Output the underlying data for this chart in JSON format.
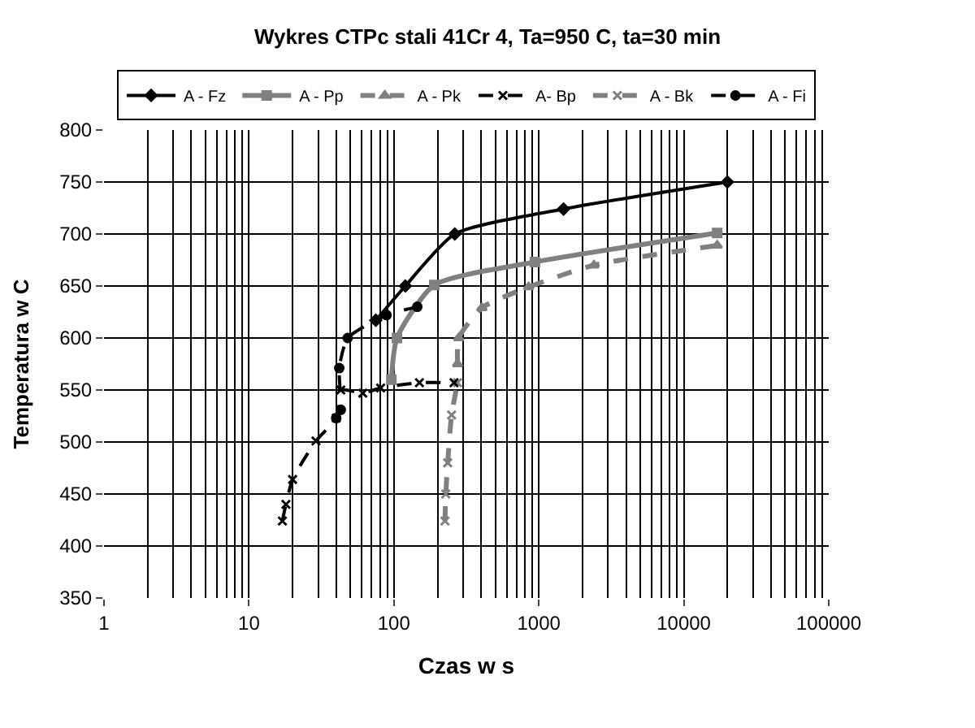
{
  "chart_data": {
    "type": "line",
    "title": "Wykres CTPc stali 41Cr 4, Ta=950 C, ta=30 min",
    "xlabel": "Czas w s",
    "ylabel": "Temperatura w C",
    "log": "x",
    "xlim": [
      1,
      100000
    ],
    "xticks": [
      1,
      10,
      100,
      1000,
      10000,
      100000
    ],
    "ylim": [
      350,
      800
    ],
    "yticks": [
      350,
      400,
      450,
      500,
      550,
      600,
      650,
      700,
      750,
      800
    ],
    "grid": true,
    "legend": "top",
    "series": [
      {
        "name": "A - Fz",
        "color": "#000000",
        "marker": "diamond",
        "line_style": "solid",
        "x": [
          75,
          120,
          263,
          1480,
          20000
        ],
        "values": [
          617,
          650,
          700,
          724,
          750
        ]
      },
      {
        "name": "A - Pp",
        "color": "#808080",
        "marker": "square",
        "line_style": "solid",
        "x": [
          96,
          105,
          190,
          940,
          17000
        ],
        "values": [
          560,
          600,
          651,
          673,
          701
        ]
      },
      {
        "name": "A - Pk",
        "color": "#808080",
        "marker": "triangle",
        "line_style": "dashed",
        "x": [
          275,
          280,
          405,
          850,
          2400,
          17000
        ],
        "values": [
          575,
          600,
          629,
          649,
          670,
          689
        ]
      },
      {
        "name": "A- Bp",
        "color": "#000000",
        "marker": "cross",
        "line_style": "dashed",
        "x": [
          17,
          18,
          20,
          29,
          40,
          43,
          61,
          81,
          150,
          260
        ],
        "values": [
          424,
          440,
          464,
          501,
          523,
          550,
          547,
          552,
          557,
          557
        ]
      },
      {
        "name": "A - Bk",
        "color": "#808080",
        "marker": "cross",
        "line_style": "dashed",
        "x": [
          225,
          228,
          235,
          250,
          275
        ],
        "values": [
          424,
          450,
          480,
          526,
          557
        ]
      },
      {
        "name": "A - Fi",
        "color": "#000000",
        "marker": "circle",
        "line_style": "dashed",
        "x": [
          40,
          43,
          42,
          48,
          89,
          145
        ],
        "values": [
          523,
          531,
          571,
          600,
          622,
          630
        ]
      }
    ]
  }
}
